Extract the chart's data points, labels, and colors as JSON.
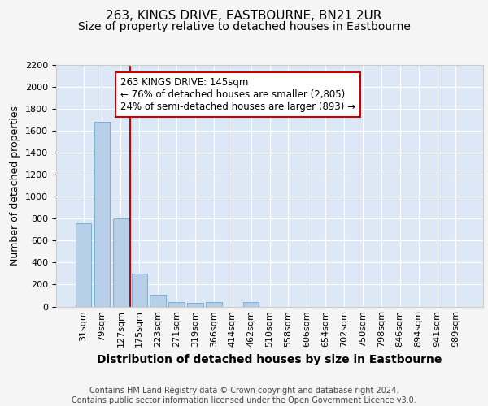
{
  "title": "263, KINGS DRIVE, EASTBOURNE, BN21 2UR",
  "subtitle": "Size of property relative to detached houses in Eastbourne",
  "xlabel": "Distribution of detached houses by size in Eastbourne",
  "ylabel": "Number of detached properties",
  "categories": [
    "31sqm",
    "79sqm",
    "127sqm",
    "175sqm",
    "223sqm",
    "271sqm",
    "319sqm",
    "366sqm",
    "414sqm",
    "462sqm",
    "510sqm",
    "558sqm",
    "606sqm",
    "654sqm",
    "702sqm",
    "750sqm",
    "798sqm",
    "846sqm",
    "894sqm",
    "941sqm",
    "989sqm"
  ],
  "values": [
    760,
    1680,
    800,
    300,
    110,
    40,
    30,
    40,
    0,
    40,
    0,
    0,
    0,
    0,
    0,
    0,
    0,
    0,
    0,
    0,
    0
  ],
  "bar_color": "#b8cfe8",
  "bar_edge_color": "#7aafd4",
  "background_color": "#dce8f5",
  "grid_color": "#ffffff",
  "fig_background": "#f5f5f5",
  "red_line_x": 2.5,
  "red_line_color": "#cc0000",
  "annotation_text": "263 KINGS DRIVE: 145sqm\n← 76% of detached houses are smaller (2,805)\n24% of semi-detached houses are larger (893) →",
  "annotation_box_facecolor": "#ffffff",
  "annotation_border_color": "#cc0000",
  "ylim": [
    0,
    2200
  ],
  "yticks": [
    0,
    200,
    400,
    600,
    800,
    1000,
    1200,
    1400,
    1600,
    1800,
    2000,
    2200
  ],
  "footer": "Contains HM Land Registry data © Crown copyright and database right 2024.\nContains public sector information licensed under the Open Government Licence v3.0.",
  "title_fontsize": 11,
  "subtitle_fontsize": 10,
  "ylabel_fontsize": 9,
  "xlabel_fontsize": 10,
  "tick_fontsize": 8,
  "footer_fontsize": 7
}
